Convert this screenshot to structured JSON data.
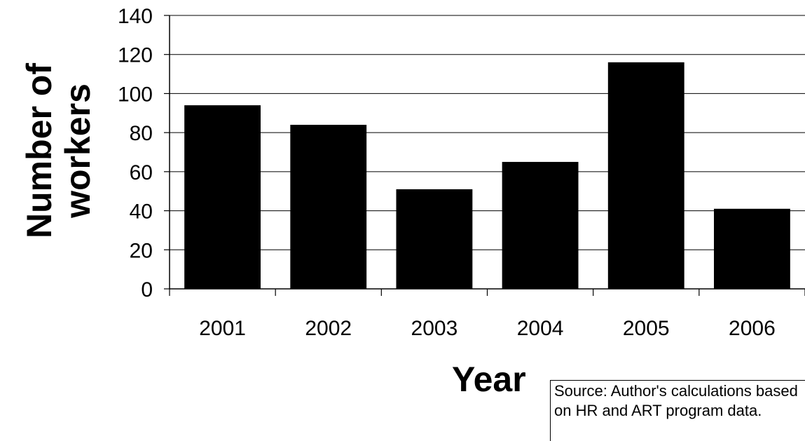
{
  "chart_data": {
    "type": "bar",
    "title": "",
    "xlabel": "Year",
    "ylabel": "Number of workers",
    "categories": [
      "2001",
      "2002",
      "2003",
      "2004",
      "2005",
      "2006"
    ],
    "values": [
      94,
      84,
      51,
      65,
      116,
      41
    ],
    "ylim": [
      0,
      140
    ],
    "yticks": [
      "0",
      "20",
      "40",
      "60",
      "80",
      "100",
      "120",
      "140"
    ],
    "grid": true,
    "bar_color": "#000000",
    "gridline_color": "#000000"
  },
  "source_note": "Source: Author's calculations based on HR and ART program data."
}
